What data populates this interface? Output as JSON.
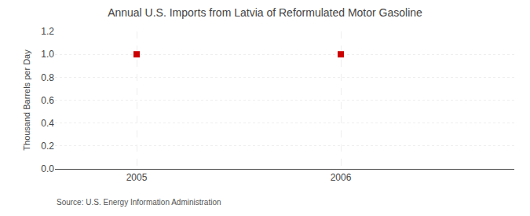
{
  "chart_data": {
    "type": "scatter",
    "title": "Annual U.S. Imports from Latvia of Reformulated Motor Gasoline",
    "ylabel": "Thousand Barrels per Day",
    "annotations": [
      "Source: U.S. Energy Information Administration"
    ],
    "x": [
      2005,
      2006
    ],
    "values": [
      1.0,
      1.0
    ],
    "color": "#cc0000",
    "marker": "square",
    "xlim": [
      2004.6,
      2006.85
    ],
    "xticks": [
      2005,
      2006
    ],
    "ylim": [
      0.0,
      1.2
    ],
    "yticks": [
      {
        "value": 0.0,
        "label": "0.0"
      },
      {
        "value": 0.2,
        "label": "0.2"
      },
      {
        "value": 0.4,
        "label": "0.4"
      },
      {
        "value": 0.6,
        "label": "0.6"
      },
      {
        "value": 0.8,
        "label": "0.8"
      },
      {
        "value": 1.0,
        "label": "1.0"
      },
      {
        "value": 1.2,
        "label": "1.2"
      }
    ],
    "grid": true
  }
}
